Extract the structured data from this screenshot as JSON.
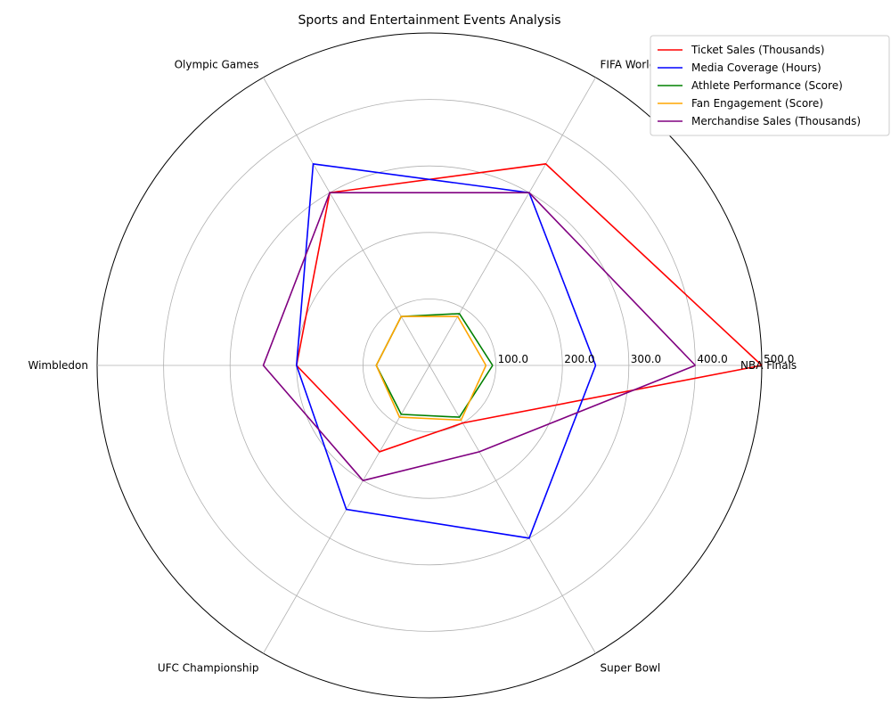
{
  "chart_data": {
    "type": "radar",
    "title": "Sports and Entertainment Events Analysis",
    "categories": [
      "NBA Finals",
      "FIFA World Cup",
      "Olympic Games",
      "Wimbledon",
      "UFC Championship",
      "Super Bowl"
    ],
    "r_ticks": [
      "100.0",
      "200.0",
      "300.0",
      "400.0",
      "500.0"
    ],
    "r_tick_values": [
      100,
      200,
      300,
      400,
      500
    ],
    "r_max": 500,
    "grid": true,
    "legend_position": "top-right",
    "series": [
      {
        "name": "Ticket Sales (Thousands)",
        "color": "#ff0000",
        "values": [
          500,
          350,
          300,
          200,
          150,
          100
        ]
      },
      {
        "name": "Media Coverage (Hours)",
        "color": "#0000ff",
        "values": [
          250,
          300,
          350,
          200,
          250,
          300
        ]
      },
      {
        "name": "Athlete Performance (Score)",
        "color": "#008000",
        "values": [
          95,
          90,
          85,
          80,
          85,
          90
        ]
      },
      {
        "name": "Fan Engagement (Score)",
        "color": "#ffa500",
        "values": [
          85,
          85,
          85,
          80,
          90,
          95
        ]
      },
      {
        "name": "Merchandise Sales (Thousands)",
        "color": "#800080",
        "values": [
          400,
          300,
          300,
          250,
          200,
          150
        ]
      }
    ]
  }
}
